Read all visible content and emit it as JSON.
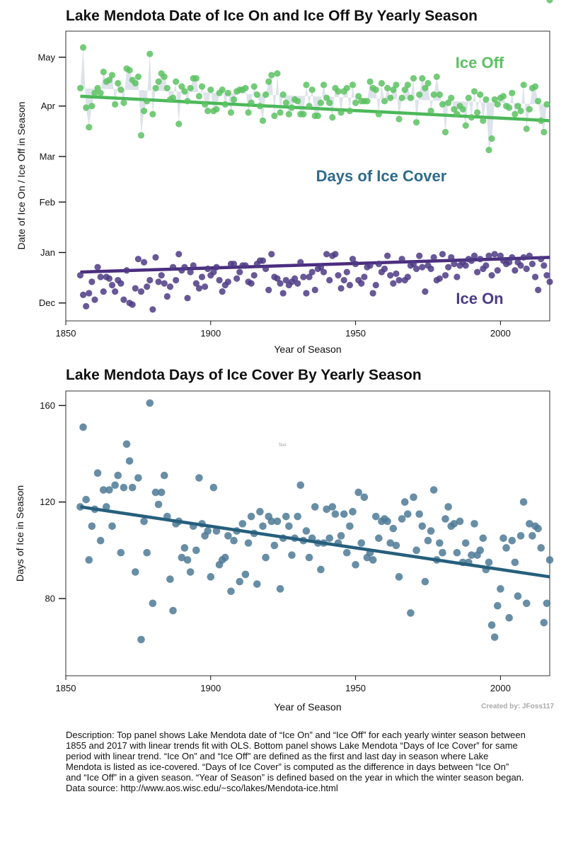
{
  "description": "Description: Top panel shows Lake Mendota date of “Ice On” and “Ice Off” for each yearly winter season between 1855 and 2017 with linear trends fit with OLS. Bottom panel shows Lake Mendota “Days of Ice Cover” for same period with linear trend. “Ice On” and “Ice Off” are defined as the first and last day in season where Lake Mendota is listed as ice-covered. “Days of Ice Cover” is computed as the difference in days between “Ice On” and “Ice Off” in a given season. “Year of Season” is defined based on the year in which the winter season began. Data source: http://www.aos.wisc.edu/~sco/lakes/Mendota-ice.html",
  "credit": "Created by: JFoss117",
  "stray_text": "Text",
  "chart_data": [
    {
      "type": "line",
      "title": "Lake Mendota Date of Ice On and Ice Off By Yearly Season",
      "xlabel": "Year of Season",
      "ylabel": "Date of Ice On / Ice Off in Season",
      "xlim": [
        1850,
        2017
      ],
      "xticks": [
        1850,
        1900,
        1950,
        2000
      ],
      "yticks": [
        {
          "label": "Dec",
          "day": 1
        },
        {
          "label": "Jan",
          "day": 32
        },
        {
          "label": "Feb",
          "day": 63
        },
        {
          "label": "Mar",
          "day": 91
        },
        {
          "label": "Apr",
          "day": 122
        },
        {
          "label": "May",
          "day": 152
        }
      ],
      "ylim": [
        -10,
        168
      ],
      "grid": false,
      "annotations": {
        "ice_off": "Ice Off",
        "cover": "Days of Ice Cover",
        "ice_on": "Ice On"
      },
      "colors": {
        "ice_off": "#5cc262",
        "ice_on": "#4e3b85",
        "fill": "#dde3ea",
        "trend_off": "#4cb85a",
        "trend_on": "#4b2e7f",
        "cover_text": "#2e6b8c"
      },
      "x": [
        1855,
        1856,
        1857,
        1858,
        1859,
        1860,
        1861,
        1862,
        1863,
        1864,
        1865,
        1866,
        1867,
        1868,
        1869,
        1870,
        1871,
        1872,
        1873,
        1874,
        1875,
        1876,
        1877,
        1878,
        1879,
        1880,
        1881,
        1882,
        1883,
        1884,
        1885,
        1886,
        1887,
        1888,
        1889,
        1890,
        1891,
        1892,
        1893,
        1894,
        1895,
        1896,
        1897,
        1898,
        1899,
        1900,
        1901,
        1902,
        1903,
        1904,
        1905,
        1906,
        1907,
        1908,
        1909,
        1910,
        1911,
        1912,
        1913,
        1914,
        1915,
        1916,
        1917,
        1918,
        1919,
        1920,
        1921,
        1922,
        1923,
        1924,
        1925,
        1926,
        1927,
        1928,
        1929,
        1930,
        1931,
        1932,
        1933,
        1934,
        1935,
        1936,
        1937,
        1938,
        1939,
        1940,
        1941,
        1942,
        1943,
        1944,
        1945,
        1946,
        1947,
        1948,
        1949,
        1950,
        1951,
        1952,
        1953,
        1954,
        1955,
        1956,
        1957,
        1958,
        1959,
        1960,
        1961,
        1962,
        1963,
        1964,
        1965,
        1966,
        1967,
        1968,
        1969,
        1970,
        1971,
        1972,
        1973,
        1974,
        1975,
        1976,
        1977,
        1978,
        1979,
        1980,
        1981,
        1982,
        1983,
        1984,
        1985,
        1986,
        1987,
        1988,
        1989,
        1990,
        1991,
        1992,
        1993,
        1994,
        1995,
        1996,
        1997,
        1998,
        1999,
        2000,
        2001,
        2002,
        2003,
        2004,
        2005,
        2006,
        2007,
        2008,
        2009,
        2010,
        2011,
        2012,
        2013,
        2014,
        2015,
        2016,
        2017
      ],
      "series": [
        {
          "name": "Ice Off",
          "dates": [
            "1856-04-11",
            "1857-05-07",
            "1858-03-31",
            "1859-03-19",
            "1860-03-31",
            "1861-04-09",
            "1862-04-12",
            "1863-04-09",
            "1864-04-21",
            "1865-04-16",
            "1866-04-17",
            "1867-04-20",
            "1868-04-01",
            "1869-04-15",
            "1870-04-11",
            "1871-04-03",
            "1872-04-23",
            "1873-04-23",
            "1874-04-17",
            "1875-04-15",
            "1876-04-18",
            "1877-03-14",
            "1878-03-29",
            "1879-04-04",
            "1880-05-02",
            "1881-03-27",
            "1882-04-12",
            "1883-04-16",
            "1884-04-20",
            "1885-04-19",
            "1886-04-12",
            "1887-04-05",
            "1888-04-05",
            "1889-04-16",
            "1890-03-21",
            "1891-04-13",
            "1892-04-09",
            "1893-04-04",
            "1894-04-12",
            "1895-04-18",
            "1896-04-17",
            "1897-04-07",
            "1898-04-13",
            "1899-04-02",
            "1900-03-29",
            "1901-04-11",
            "1902-03-29",
            "1903-03-30",
            "1904-04-08",
            "1905-04-11",
            "1906-04-02",
            "1907-04-09",
            "1908-03-27",
            "1909-04-05",
            "1910-04-10",
            "1911-04-11",
            "1912-04-10",
            "1913-04-12",
            "1914-03-28",
            "1915-04-03",
            "1916-04-12",
            "1917-04-08",
            "1918-04-01",
            "1919-03-23",
            "1920-04-07",
            "1921-04-16",
            "1922-04-20",
            "1923-03-26",
            "1924-04-20",
            "1925-03-28",
            "1926-04-08",
            "1927-04-03",
            "1928-03-26",
            "1929-03-31",
            "1930-04-05",
            "1931-04-04",
            "1932-03-26",
            "1933-03-27",
            "1934-04-14",
            "1935-04-01",
            "1936-04-10",
            "1937-03-26",
            "1938-03-26",
            "1939-04-03",
            "1940-04-13",
            "1941-04-06",
            "1942-04-03",
            "1943-03-25",
            "1944-04-11",
            "1945-04-10",
            "1946-03-28",
            "1947-04-10",
            "1948-04-11",
            "1949-03-29",
            "1950-04-14",
            "1951-04-03",
            "1952-04-06",
            "1953-04-04",
            "1954-04-04",
            "1955-04-04",
            "1956-04-15",
            "1957-04-12",
            "1958-04-11",
            "1959-03-27",
            "1960-04-14",
            "1961-04-04",
            "1962-04-12",
            "1963-04-06",
            "1964-04-10",
            "1965-04-14",
            "1966-03-24",
            "1967-04-06",
            "1968-04-10",
            "1969-04-14",
            "1970-04-06",
            "1971-04-18",
            "1972-03-21",
            "1973-04-08",
            "1974-04-18",
            "1975-04-12",
            "1976-04-14",
            "1977-03-29",
            "1978-04-08",
            "1979-04-19",
            "1980-04-07",
            "1981-04-02",
            "1982-03-16",
            "1983-04-03",
            "1984-04-05",
            "1985-03-30",
            "1986-03-27",
            "1987-04-01",
            "1988-03-29",
            "1989-03-20",
            "1990-04-06",
            "1991-03-25",
            "1992-04-09",
            "1993-03-28",
            "1994-04-08",
            "1995-03-23",
            "1996-04-04",
            "1997-03-05",
            "1998-03-12",
            "1999-04-05",
            "2000-04-01",
            "2001-04-06",
            "2002-04-07",
            "2003-04-01",
            "2004-03-30",
            "2005-04-09",
            "2006-03-27",
            "2007-04-01",
            "2008-03-28",
            "2009-04-14",
            "2010-03-18",
            "2011-03-30",
            "2012-04-11",
            "2013-04-13",
            "2014-04-04",
            "2015-03-23",
            "2016-03-15",
            "2017-04-02"
          ]
        },
        {
          "name": "Ice On",
          "dates": [
            "1855-12-18",
            "1856-12-06",
            "1857-11-29",
            "1858-12-07",
            "1859-12-14",
            "1860-12-03",
            "1861-12-23",
            "1862-12-17",
            "1863-12-08",
            "1864-12-17",
            "1865-12-16",
            "1866-12-12",
            "1867-12-08",
            "1868-12-15",
            "1869-12-13",
            "1870-12-03",
            "1871-12-21",
            "1872-12-01",
            "1873-11-30",
            "1874-12-10",
            "1875-12-28",
            "1876-12-08",
            "1877-12-26",
            "1878-12-11",
            "1879-12-15",
            "1880-11-27",
            "1881-12-29",
            "1882-12-14",
            "1883-12-18",
            "1884-12-13",
            "1885-12-05",
            "1886-12-11",
            "1887-12-23",
            "1888-12-15",
            "1889-12-31",
            "1890-12-21",
            "1891-12-23",
            "1892-12-04",
            "1893-12-20",
            "1894-12-24",
            "1895-12-13",
            "1896-12-10",
            "1897-12-17",
            "1898-12-11",
            "1899-12-22",
            "1900-12-18",
            "1901-12-20",
            "1902-12-23",
            "1903-12-15",
            "1904-12-08",
            "1905-12-12",
            "1906-12-14",
            "1907-12-25",
            "1908-12-25",
            "1909-12-16",
            "1910-12-20",
            "1911-12-24",
            "1912-12-24",
            "1913-12-14",
            "1914-12-13",
            "1915-12-18",
            "1916-12-25",
            "1917-12-27",
            "1918-12-27",
            "1919-12-22",
            "1920-12-09",
            "1921-12-31",
            "1922-12-17",
            "1923-12-16",
            "1924-12-13",
            "1925-12-07",
            "1926-12-15",
            "1927-12-12",
            "1928-12-14",
            "1929-12-16",
            "1930-12-13",
            "1931-12-26",
            "1932-12-17",
            "1933-12-07",
            "1934-12-17",
            "1935-12-20",
            "1936-12-09",
            "1937-12-22",
            "1938-12-23",
            "1939-12-20",
            "1940-12-31",
            "1941-12-15",
            "1942-12-30",
            "1943-12-31",
            "1944-12-18",
            "1945-12-10",
            "1946-12-15",
            "1947-12-20",
            "1948-12-12",
            "1949-12-28",
            "1950-12-25",
            "1951-12-15",
            "1952-12-13",
            "1953-12-17",
            "1954-12-23",
            "1955-12-24",
            "1956-12-07",
            "1957-12-12",
            "1958-12-25",
            "1959-12-20",
            "1960-12-22",
            "1961-12-30",
            "1962-12-18",
            "1963-12-13",
            "1964-12-19",
            "1965-12-15",
            "1966-12-28",
            "1967-12-15",
            "1968-12-17",
            "1969-12-24",
            "1970-12-25",
            "1971-12-22",
            "1972-12-30",
            "1973-12-23",
            "1974-12-08",
            "1975-12-24",
            "1976-12-22",
            "1977-12-29",
            "1978-12-15",
            "1979-12-16",
            "1980-12-31",
            "1981-12-18",
            "1982-12-23",
            "1983-12-29",
            "1984-12-25",
            "1985-12-17",
            "1986-12-24",
            "1987-12-26",
            "1988-12-24",
            "1989-12-28",
            "1990-12-27",
            "1991-12-30",
            "1992-12-20",
            "1993-12-28",
            "1994-12-22",
            "1995-12-24",
            "1996-12-30",
            "1997-12-18",
            "1998-12-31",
            "1999-12-21",
            "2000-12-30",
            "2001-12-27",
            "2002-12-25",
            "2003-12-26",
            "2004-12-29",
            "2005-12-21",
            "2006-12-26",
            "2007-12-24",
            "2008-12-29",
            "2009-12-22",
            "2010-12-30",
            "2011-12-25",
            "2012-12-17",
            "2013-12-09",
            "2014-12-28",
            "2015-12-24",
            "2016-12-18",
            "2017-12-14"
          ]
        }
      ],
      "trends": [
        {
          "name": "Ice Off",
          "from": [
            1855,
            128
          ],
          "to": [
            2017,
            113
          ]
        },
        {
          "name": "Ice On",
          "from": [
            1855,
            20
          ],
          "to": [
            2017,
            29
          ]
        }
      ]
    },
    {
      "type": "scatter",
      "title": "Lake Mendota Days of Ice Cover By Yearly Season",
      "xlabel": "Year of Season",
      "ylabel": "Days of Ice in Season",
      "xlim": [
        1850,
        2017
      ],
      "ylim": [
        48,
        166
      ],
      "xticks": [
        1850,
        1900,
        1950,
        2000
      ],
      "yticks": [
        80,
        120,
        160
      ],
      "grid": false,
      "colors": {
        "points": "#4d7a96",
        "trend": "#275f7d"
      },
      "values": [
        118,
        151,
        121,
        96,
        110,
        117,
        132,
        104,
        125,
        118,
        125,
        110,
        127,
        131,
        99,
        126,
        144,
        137,
        126,
        91,
        130,
        63,
        112,
        99,
        161,
        78,
        124,
        119,
        124,
        131,
        114,
        88,
        75,
        111,
        112,
        97,
        101,
        96,
        91,
        110,
        100,
        130,
        111,
        106,
        108,
        89,
        126,
        108,
        94,
        96,
        97,
        106,
        83,
        104,
        108,
        87,
        111,
        90,
        103,
        114,
        107,
        86,
        116,
        110,
        97,
        114,
        112,
        102,
        112,
        84,
        105,
        114,
        110,
        98,
        105,
        114,
        127,
        104,
        108,
        97,
        105,
        118,
        103,
        92,
        103,
        117,
        105,
        118,
        115,
        103,
        106,
        115,
        99,
        110,
        116,
        94,
        124,
        103,
        122,
        97,
        99,
        96,
        114,
        105,
        112,
        113,
        112,
        103,
        109,
        102,
        89,
        113,
        120,
        115,
        74,
        122,
        100,
        115,
        110,
        87,
        104,
        108,
        125,
        96,
        103,
        99,
        113,
        118,
        110,
        111,
        99,
        112,
        95,
        103,
        95,
        98,
        111,
        98,
        100,
        105,
        92,
        95,
        69,
        64,
        77,
        84,
        105,
        101,
        72,
        104,
        95,
        81,
        106,
        120,
        78,
        111,
        106,
        110,
        109,
        101,
        70,
        78,
        96
      ],
      "trend": {
        "from": [
          1855,
          118
        ],
        "to": [
          2017,
          89
        ]
      }
    }
  ]
}
